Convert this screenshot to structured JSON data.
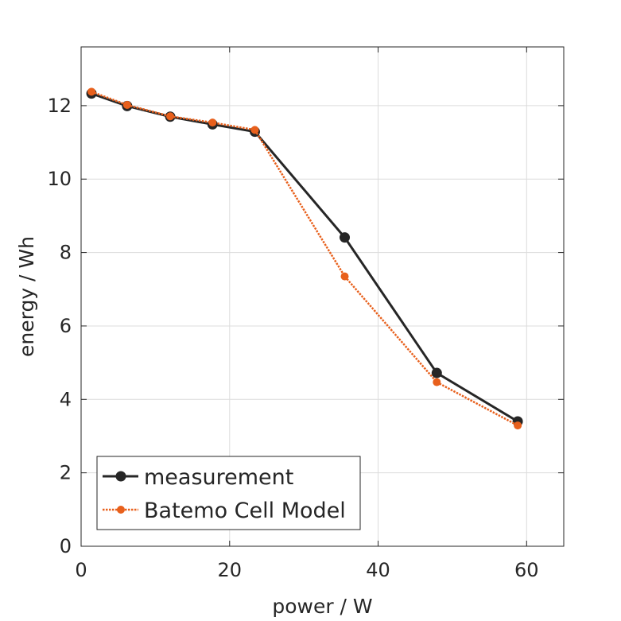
{
  "chart_data": {
    "type": "line",
    "xlabel": "power / W",
    "ylabel": "energy / Wh",
    "xlim": [
      0,
      65
    ],
    "ylim": [
      0,
      13.6
    ],
    "xticks": [
      0,
      20,
      40,
      60
    ],
    "yticks": [
      0,
      2,
      4,
      6,
      8,
      10,
      12
    ],
    "grid": true,
    "legend_position": "bottom-left",
    "series": [
      {
        "name": "measurement",
        "color": "#262626",
        "style": "solid",
        "marker": "circle",
        "x": [
          1.4,
          6.2,
          12.0,
          17.7,
          23.4,
          35.5,
          47.9,
          58.8
        ],
        "y": [
          12.33,
          11.99,
          11.7,
          11.49,
          11.29,
          8.41,
          4.72,
          3.4
        ]
      },
      {
        "name": "Batemo Cell Model",
        "color": "#e8601c",
        "style": "dotted",
        "marker": "circle",
        "x": [
          1.4,
          6.2,
          12.0,
          17.7,
          23.4,
          35.5,
          47.9,
          58.8
        ],
        "y": [
          12.38,
          12.02,
          11.71,
          11.54,
          11.34,
          7.35,
          4.47,
          3.29
        ]
      }
    ]
  }
}
